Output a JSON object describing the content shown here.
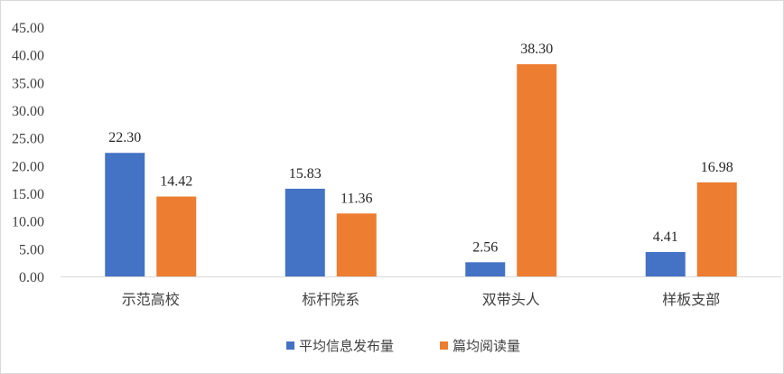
{
  "chart_data": {
    "type": "bar",
    "title": "",
    "xlabel": "",
    "ylabel": "",
    "categories": [
      "示范高校",
      "标杆院系",
      "双带头人",
      "样板支部"
    ],
    "series": [
      {
        "name": "平均信息发布量",
        "color": "#4472C4",
        "values": [
          22.3,
          15.83,
          2.56,
          4.41
        ]
      },
      {
        "name": "篇均阅读量",
        "color": "#ED7D31",
        "values": [
          14.42,
          11.36,
          38.3,
          16.98
        ]
      }
    ],
    "ylim": [
      0,
      45
    ],
    "yticks": [
      "0.00",
      "5.00",
      "10.00",
      "15.00",
      "20.00",
      "25.00",
      "30.00",
      "35.00",
      "40.00",
      "45.00"
    ],
    "grid": false,
    "legend": "bottom-center"
  }
}
